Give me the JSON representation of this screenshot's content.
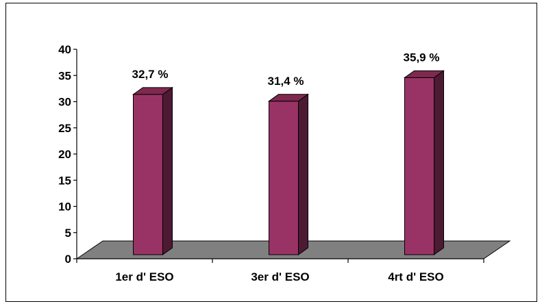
{
  "chart_data": {
    "type": "bar",
    "categories": [
      "1er d' ESO",
      "3er d' ESO",
      "4rt d' ESO"
    ],
    "values": [
      32.7,
      31.4,
      35.9
    ],
    "data_labels": [
      "32,7 %",
      "31,4 %",
      "35,9 %"
    ],
    "y_ticks": [
      0,
      5,
      10,
      15,
      20,
      25,
      30,
      35,
      40
    ],
    "ylim": [
      0,
      40
    ],
    "title": "",
    "xlabel": "",
    "ylabel": "",
    "grid": false,
    "legend": "none",
    "style": "3d-column",
    "colors": {
      "bar_front": "#993366",
      "bar_side": "#4d1a33",
      "bar_top": "#80294f",
      "floor": "#808080"
    }
  }
}
